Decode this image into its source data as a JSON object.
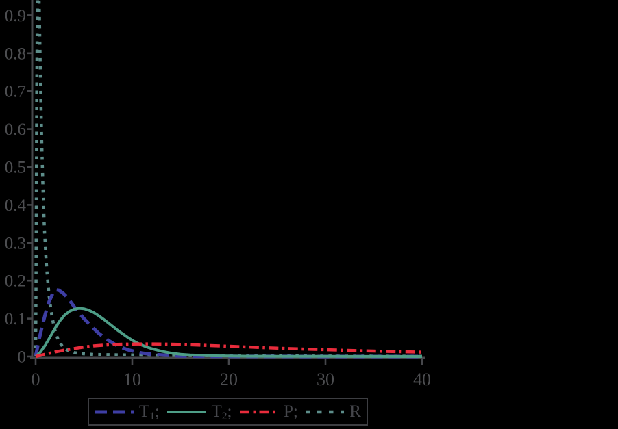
{
  "chart_data": {
    "type": "line",
    "title": "",
    "xlabel": "",
    "ylabel": "",
    "xlim": [
      0,
      40
    ],
    "ylim": [
      0,
      0.94
    ],
    "grid": false,
    "background_color": "#000000",
    "axis_color": "#46474b",
    "tick_label_color": "#4d4e51",
    "legend_position": "bottom-center",
    "x_tick_values": [
      0,
      10,
      20,
      30,
      40
    ],
    "x_tick_labels": [
      "0",
      "10",
      "20",
      "30",
      "40"
    ],
    "y_tick_values": [
      0,
      0.1,
      0.2,
      0.3,
      0.4,
      0.5,
      0.6,
      0.7,
      0.8,
      0.9
    ],
    "y_tick_labels": [
      "0",
      "0.1",
      "0.2",
      "0.3",
      "0.4",
      "0.5",
      "0.6",
      "0.7",
      "0.8",
      "0.9"
    ],
    "series": [
      {
        "name": "T1",
        "label_base": "T",
        "label_sub": "1",
        "label_suffix": ";",
        "color": "#3e3ea4",
        "style": "dashed",
        "x": [
          0,
          0.3,
          0.6,
          1,
          1.4,
          1.8,
          2.1,
          2.4,
          2.8,
          3.2,
          3.6,
          4,
          4.5,
          5,
          5.5,
          6,
          6.5,
          7,
          7.5,
          8,
          8.5,
          9,
          9.5,
          10,
          10.5,
          11,
          12,
          13,
          14,
          15,
          16,
          18,
          20,
          25,
          30,
          40
        ],
        "y": [
          0,
          0.038,
          0.072,
          0.112,
          0.145,
          0.168,
          0.176,
          0.175,
          0.168,
          0.158,
          0.145,
          0.131,
          0.115,
          0.1,
          0.087,
          0.074,
          0.062,
          0.052,
          0.043,
          0.035,
          0.028,
          0.023,
          0.018,
          0.015,
          0.012,
          0.009,
          0.006,
          0.004,
          0.0025,
          0.0015,
          0.001,
          0.0005,
          0.0003,
          0.0001,
          0,
          0
        ]
      },
      {
        "name": "T2",
        "label_base": "T",
        "label_sub": "2",
        "label_suffix": ";",
        "color": "#4e9e87",
        "style": "solid",
        "x": [
          0,
          0.5,
          1,
          1.5,
          2,
          2.5,
          3,
          3.5,
          4,
          4.5,
          5,
          5.5,
          6,
          6.5,
          7,
          7.5,
          8,
          8.5,
          9,
          9.5,
          10,
          10.5,
          11,
          11.5,
          12,
          13,
          14,
          15,
          16,
          17,
          18,
          20,
          22,
          25,
          30,
          35,
          40
        ],
        "y": [
          0,
          0.012,
          0.03,
          0.052,
          0.074,
          0.094,
          0.109,
          0.119,
          0.125,
          0.127,
          0.126,
          0.122,
          0.116,
          0.108,
          0.099,
          0.089,
          0.079,
          0.069,
          0.06,
          0.051,
          0.043,
          0.036,
          0.03,
          0.025,
          0.021,
          0.014,
          0.009,
          0.006,
          0.004,
          0.003,
          0.002,
          0.0012,
          0.0008,
          0.0005,
          0.0003,
          0.0001,
          0
        ]
      },
      {
        "name": "P",
        "label_base": "P",
        "label_sub": "",
        "label_suffix": ";",
        "color": "#e92c3c",
        "style": "dashdot",
        "x": [
          0,
          1,
          2,
          3,
          4,
          5,
          6,
          7,
          8,
          9,
          10,
          11,
          12,
          14,
          16,
          18,
          20,
          22,
          25,
          28,
          30,
          32,
          35,
          38,
          40
        ],
        "y": [
          0,
          0.006,
          0.012,
          0.017,
          0.021,
          0.025,
          0.028,
          0.03,
          0.0315,
          0.0325,
          0.033,
          0.0333,
          0.0333,
          0.0325,
          0.031,
          0.029,
          0.027,
          0.025,
          0.022,
          0.0195,
          0.018,
          0.0165,
          0.0145,
          0.0125,
          0.0115
        ]
      },
      {
        "name": "R",
        "label_base": "R",
        "label_sub": "",
        "label_suffix": "",
        "color": "#5d8d8a",
        "style": "dotted",
        "x": [
          0,
          0.04,
          0.08,
          0.12,
          0.16,
          0.2,
          0.26,
          0.33,
          0.42,
          0.52,
          0.62,
          0.75,
          0.9,
          1.05,
          1.2,
          1.4,
          1.6,
          1.85,
          2.1,
          2.4,
          2.8,
          3.2,
          3.6,
          4,
          5,
          6,
          8,
          10,
          12,
          15,
          20,
          30,
          40
        ],
        "y": [
          0,
          0.2,
          0.45,
          0.7,
          0.88,
          0.97,
          1.0,
          0.97,
          0.86,
          0.71,
          0.58,
          0.45,
          0.34,
          0.27,
          0.215,
          0.16,
          0.12,
          0.085,
          0.06,
          0.04,
          0.026,
          0.018,
          0.013,
          0.01,
          0.007,
          0.0055,
          0.0045,
          0.004,
          0.0035,
          0.003,
          0.002,
          0.001,
          0.0005
        ]
      }
    ]
  }
}
